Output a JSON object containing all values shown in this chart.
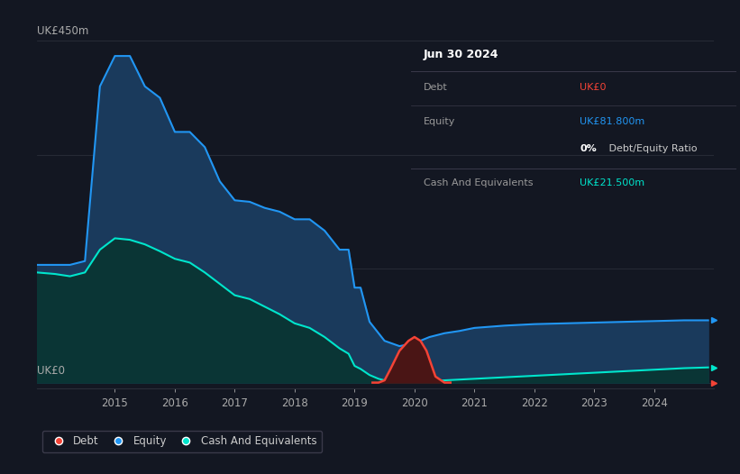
{
  "bg_color": "#131722",
  "plot_bg_color": "#131722",
  "grid_color": "#2a2e39",
  "ylabel_top": "UK£450m",
  "ylabel_bottom": "UK£0",
  "xlim": [
    2013.7,
    2025.0
  ],
  "ylim": [
    -8,
    460
  ],
  "equity_color": "#2196f3",
  "equity_fill": "#1a3a5c",
  "cash_color": "#00e5cc",
  "cash_fill": "#0a3535",
  "debt_color": "#f44336",
  "debt_fill": "#4a1515",
  "info_box": {
    "date": "Jun 30 2024",
    "debt_label": "Debt",
    "debt_value": "UK£0",
    "debt_color": "#f44336",
    "equity_label": "Equity",
    "equity_value": "UK£81.800m",
    "equity_color": "#2196f3",
    "ratio_bold": "0%",
    "ratio_rest": " Debt/Equity Ratio",
    "cash_label": "Cash And Equivalents",
    "cash_value": "UK£21.500m",
    "cash_color": "#00e5cc"
  },
  "equity_x": [
    2013.7,
    2014.0,
    2014.25,
    2014.5,
    2014.75,
    2015.0,
    2015.25,
    2015.5,
    2015.75,
    2016.0,
    2016.25,
    2016.5,
    2016.75,
    2017.0,
    2017.25,
    2017.5,
    2017.75,
    2018.0,
    2018.25,
    2018.5,
    2018.75,
    2018.9,
    2019.0,
    2019.1,
    2019.25,
    2019.5,
    2019.75,
    2020.0,
    2020.25,
    2020.5,
    2020.75,
    2021.0,
    2021.5,
    2022.0,
    2022.5,
    2023.0,
    2023.5,
    2024.0,
    2024.5,
    2024.9
  ],
  "equity_y": [
    155,
    155,
    155,
    160,
    390,
    430,
    430,
    390,
    375,
    330,
    330,
    310,
    265,
    240,
    238,
    230,
    225,
    215,
    215,
    200,
    175,
    175,
    125,
    125,
    80,
    55,
    48,
    52,
    60,
    65,
    68,
    72,
    75,
    77,
    78,
    79,
    80,
    81,
    82,
    82
  ],
  "cash_x": [
    2013.7,
    2014.0,
    2014.25,
    2014.5,
    2014.75,
    2015.0,
    2015.25,
    2015.5,
    2015.75,
    2016.0,
    2016.25,
    2016.5,
    2016.75,
    2017.0,
    2017.25,
    2017.5,
    2017.75,
    2018.0,
    2018.25,
    2018.5,
    2018.75,
    2018.9,
    2019.0,
    2019.1,
    2019.25,
    2019.4,
    2019.5,
    2019.75,
    2020.0,
    2020.25,
    2020.5,
    2020.75,
    2021.0,
    2021.5,
    2022.0,
    2022.5,
    2023.0,
    2023.5,
    2024.0,
    2024.5,
    2024.9
  ],
  "cash_y": [
    145,
    143,
    140,
    145,
    175,
    190,
    188,
    182,
    173,
    163,
    158,
    145,
    130,
    115,
    110,
    100,
    90,
    78,
    72,
    60,
    45,
    38,
    22,
    18,
    10,
    5,
    3,
    2,
    2,
    2,
    3,
    4,
    5,
    7,
    9,
    11,
    13,
    15,
    17,
    19,
    20
  ],
  "debt_x": [
    2019.3,
    2019.4,
    2019.5,
    2019.6,
    2019.75,
    2019.9,
    2020.0,
    2020.1,
    2020.2,
    2020.35,
    2020.5,
    2020.6
  ],
  "debt_y": [
    0,
    0,
    3,
    18,
    42,
    55,
    60,
    55,
    42,
    8,
    0,
    0
  ],
  "tick_years": [
    2015,
    2016,
    2017,
    2018,
    2019,
    2020,
    2021,
    2022,
    2023,
    2024
  ],
  "legend_items": [
    "Debt",
    "Equity",
    "Cash And Equivalents"
  ],
  "legend_colors": [
    "#f44336",
    "#2196f3",
    "#00e5cc"
  ]
}
